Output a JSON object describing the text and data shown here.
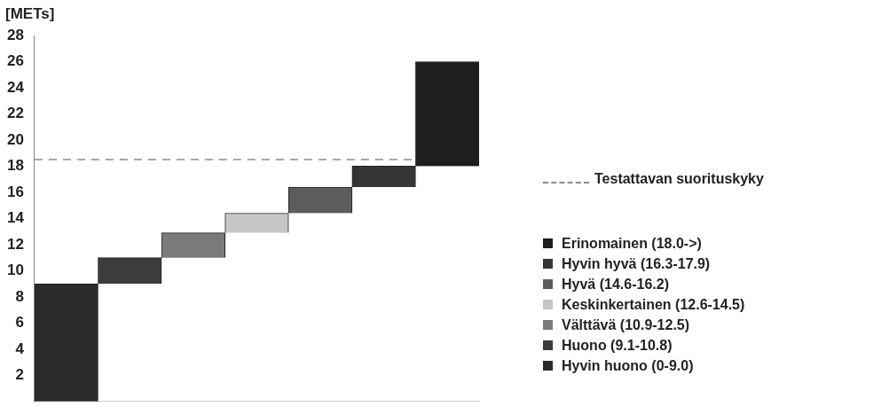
{
  "chart_data": {
    "type": "bar",
    "ylabel": "[METs]",
    "categories": [
      null,
      null,
      null,
      null,
      null,
      null,
      null
    ],
    "series": [
      {
        "name": "Hyvin huono (0-9.0)",
        "color": "#2b2b2b",
        "values": [
          9.0,
          null,
          null,
          null,
          null,
          null,
          null
        ],
        "base": [
          0,
          null,
          null,
          null,
          null,
          null,
          null
        ]
      },
      {
        "name": "Huono (9.1-10.8)",
        "color": "#3c3c3c",
        "values": [
          null,
          2.0,
          null,
          null,
          null,
          null,
          null
        ],
        "base": [
          null,
          9.0,
          null,
          null,
          null,
          null,
          null
        ]
      },
      {
        "name": "Välttävä (10.9-12.5)",
        "color": "#7a7a7a",
        "values": [
          null,
          null,
          1.9,
          null,
          null,
          null,
          null
        ],
        "base": [
          null,
          null,
          11.0,
          null,
          null,
          null,
          null
        ]
      },
      {
        "name": "Keskinkertainen (12.6-14.5)",
        "color": "#c6c6c6",
        "values": [
          null,
          null,
          null,
          1.5,
          null,
          null,
          null
        ],
        "base": [
          null,
          null,
          null,
          12.9,
          null,
          null,
          null
        ]
      },
      {
        "name": "Hyvä (14.6-16.2)",
        "color": "#5c5c5c",
        "values": [
          null,
          null,
          null,
          null,
          2.0,
          null,
          null
        ],
        "base": [
          null,
          null,
          null,
          null,
          14.4,
          null,
          null
        ]
      },
      {
        "name": "Hyvin hyvä (16.3-17.9)",
        "color": "#353535",
        "values": [
          null,
          null,
          null,
          null,
          null,
          1.6,
          null
        ],
        "base": [
          null,
          null,
          null,
          null,
          null,
          16.4,
          null
        ]
      },
      {
        "name": "Erinomainen (18.0->)",
        "color": "#1e1e1e",
        "values": [
          null,
          null,
          null,
          null,
          null,
          null,
          8.0
        ],
        "base": [
          null,
          null,
          null,
          null,
          null,
          null,
          18.0
        ]
      }
    ],
    "ylim": [
      0,
      28
    ],
    "yticks": [
      2,
      4,
      6,
      8,
      10,
      12,
      14,
      16,
      18,
      20,
      22,
      24,
      26,
      28
    ],
    "ref_lines": [
      {
        "axis": "y",
        "value": 18.5,
        "label": "Testattavan suorituskyky",
        "color": "#8a8a8a",
        "line_style": "dashed"
      }
    ],
    "legend": "right",
    "tick_labels": "y"
  }
}
